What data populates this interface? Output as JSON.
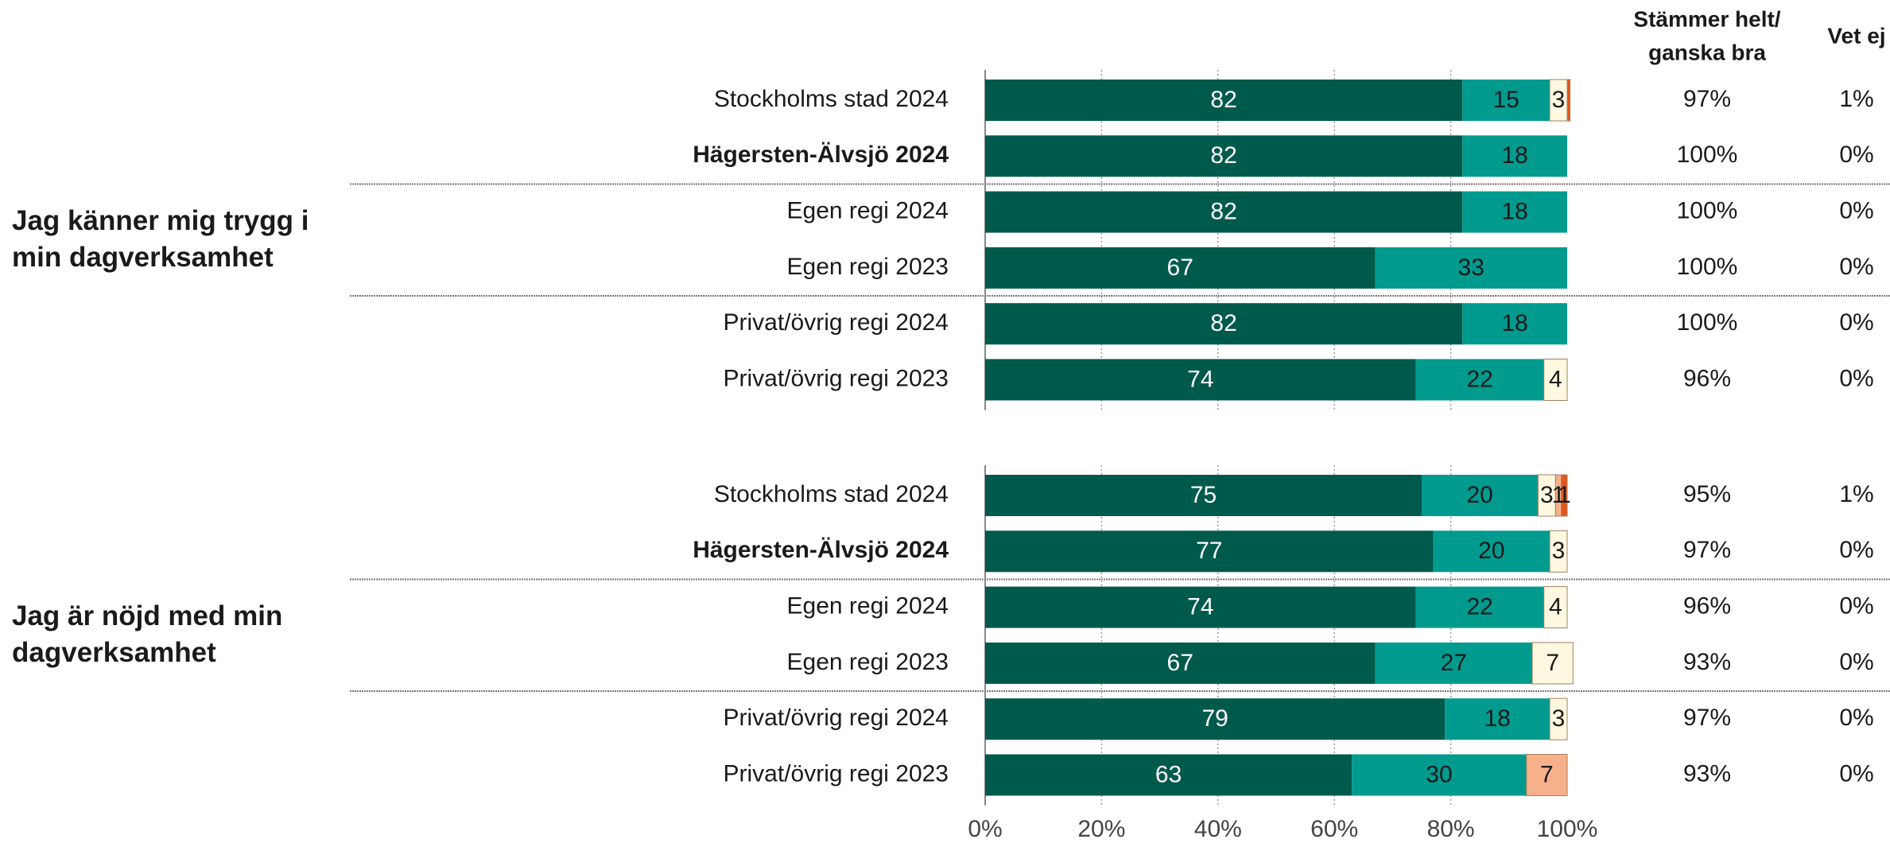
{
  "chart_data": {
    "type": "bar",
    "orientation": "horizontal",
    "stacked": true,
    "xlim": [
      0,
      100
    ],
    "xticks": [
      {
        "value": 0,
        "label": "0%"
      },
      {
        "value": 20,
        "label": "20%"
      },
      {
        "value": 40,
        "label": "40%"
      },
      {
        "value": 60,
        "label": "60%"
      },
      {
        "value": 80,
        "label": "80%"
      },
      {
        "value": 100,
        "label": "100%"
      }
    ],
    "grid": true,
    "column_headers": [
      [
        "Stämmer helt/",
        "ganska bra"
      ],
      [
        "Vet ej"
      ]
    ],
    "groups": [
      {
        "title_lines": [
          "Jag känner mig trygg i",
          "min dagverksamhet"
        ],
        "categories": [
          "Stockholms stad 2024",
          "Hägersten-Älvsjö 2024",
          "Egen regi 2024",
          "Egen regi 2023",
          "Privat/övrig regi 2024",
          "Privat/övrig regi 2023"
        ],
        "bold": [
          false,
          true,
          false,
          false,
          false,
          false
        ],
        "series": [
          {
            "color": "#005a4b",
            "values": [
              82,
              82,
              82,
              67,
              82,
              74
            ]
          },
          {
            "color": "#009a8e",
            "values": [
              15,
              18,
              18,
              33,
              18,
              22
            ]
          },
          {
            "color": "#fff8e1",
            "values": [
              3,
              0,
              0,
              0,
              0,
              4
            ]
          },
          {
            "color": "#f6b08a",
            "values": [
              0,
              0,
              0,
              0,
              0,
              0
            ]
          },
          {
            "color": "#e2561a",
            "values": [
              0.5,
              0,
              0,
              0,
              0,
              0
            ]
          }
        ],
        "columns": [
          [
            "97%",
            "100%",
            "100%",
            "100%",
            "100%",
            "96%"
          ],
          [
            "1%",
            "0%",
            "0%",
            "0%",
            "0%",
            "0%"
          ]
        ]
      },
      {
        "title_lines": [
          "Jag är nöjd med min",
          "dagverksamhet"
        ],
        "categories": [
          "Stockholms stad 2024",
          "Hägersten-Älvsjö 2024",
          "Egen regi 2024",
          "Egen regi 2023",
          "Privat/övrig regi 2024",
          "Privat/övrig regi 2023"
        ],
        "bold": [
          false,
          true,
          false,
          false,
          false,
          false
        ],
        "series": [
          {
            "color": "#005a4b",
            "values": [
              75,
              77,
              74,
              67,
              79,
              63
            ]
          },
          {
            "color": "#009a8e",
            "values": [
              20,
              20,
              22,
              27,
              18,
              30
            ]
          },
          {
            "color": "#fff8e1",
            "values": [
              3,
              3,
              4,
              7,
              3,
              0
            ]
          },
          {
            "color": "#f6b08a",
            "values": [
              1,
              0,
              0,
              0,
              0,
              7
            ]
          },
          {
            "color": "#e2561a",
            "values": [
              1,
              0,
              0,
              0,
              0,
              0
            ]
          }
        ],
        "columns": [
          [
            "95%",
            "97%",
            "96%",
            "93%",
            "97%",
            "93%"
          ],
          [
            "1%",
            "0%",
            "0%",
            "0%",
            "0%",
            "0%"
          ]
        ]
      }
    ]
  }
}
